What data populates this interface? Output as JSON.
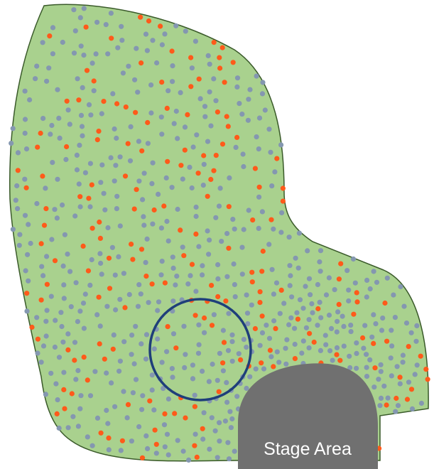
{
  "stage": {
    "label": "Stage Area"
  },
  "colors": {
    "field_fill": "#a9d18e",
    "field_stroke": "#3a5a2a",
    "stage_fill": "#707070",
    "person": "#8497b0",
    "highlighted_person": "#ff5a1a",
    "circle": "#1f3f7a"
  },
  "legend_items": [
    "person-dot-gray",
    "person-dot-orange",
    "focus-circle"
  ]
}
